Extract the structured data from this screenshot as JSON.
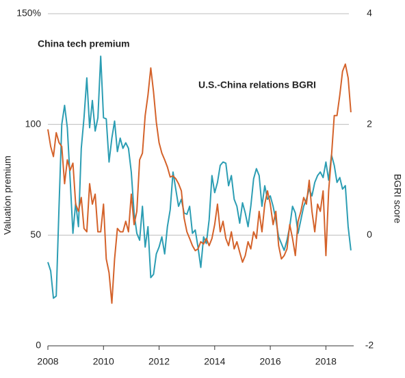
{
  "chart_data": {
    "type": "line",
    "y_label": "Valuation premium",
    "y2_label": "BGRI score",
    "x": [
      2008.0,
      2008.1,
      2008.2,
      2008.3,
      2008.4,
      2008.5,
      2008.6,
      2008.7,
      2008.8,
      2008.9,
      2009.0,
      2009.1,
      2009.2,
      2009.3,
      2009.4,
      2009.5,
      2009.6,
      2009.7,
      2009.8,
      2009.9,
      2010.0,
      2010.1,
      2010.2,
      2010.3,
      2010.4,
      2010.5,
      2010.6,
      2010.7,
      2010.8,
      2010.9,
      2011.0,
      2011.1,
      2011.2,
      2011.3,
      2011.4,
      2011.5,
      2011.6,
      2011.7,
      2011.8,
      2011.9,
      2012.0,
      2012.1,
      2012.2,
      2012.3,
      2012.4,
      2012.5,
      2012.6,
      2012.7,
      2012.8,
      2012.9,
      2013.0,
      2013.1,
      2013.2,
      2013.3,
      2013.4,
      2013.5,
      2013.6,
      2013.7,
      2013.8,
      2013.9,
      2014.0,
      2014.1,
      2014.2,
      2014.3,
      2014.4,
      2014.5,
      2014.6,
      2014.7,
      2014.8,
      2014.9,
      2015.0,
      2015.1,
      2015.2,
      2015.3,
      2015.4,
      2015.5,
      2015.6,
      2015.7,
      2015.8,
      2015.9,
      2016.0,
      2016.1,
      2016.2,
      2016.3,
      2016.4,
      2016.5,
      2016.6,
      2016.7,
      2016.8,
      2016.9,
      2017.0,
      2017.1,
      2017.2,
      2017.3,
      2017.4,
      2017.5,
      2017.6,
      2017.7,
      2017.8,
      2017.9,
      2018.0,
      2018.1,
      2018.2,
      2018.3,
      2018.4,
      2018.5,
      2018.6,
      2018.7,
      2018.8,
      2018.9
    ],
    "series": [
      {
        "name": "China tech premium",
        "color": "#2b9db3",
        "values": [
          37.8,
          33.8,
          21.5,
          22.5,
          63,
          100,
          108.6,
          98.5,
          75.4,
          50.8,
          64.6,
          53.8,
          89.2,
          103,
          121,
          98.5,
          110.8,
          97,
          103,
          130.8,
          103,
          102.5,
          83,
          93.8,
          101.5,
          87.7,
          93.8,
          89.2,
          91.7,
          89.2,
          78.5,
          60,
          50.8,
          47.7,
          63,
          44.6,
          53.8,
          30.8,
          32.3,
          41.5,
          44.6,
          49.2,
          41.5,
          53.8,
          61.5,
          78.5,
          70.8,
          63,
          66.2,
          60,
          59.4,
          63,
          50.8,
          52.3,
          44.6,
          35.4,
          49.2,
          46.2,
          56.9,
          76.9,
          69.2,
          73.8,
          81.5,
          83,
          82.5,
          72.3,
          76.9,
          66.2,
          63,
          55.4,
          64.6,
          60,
          53.8,
          63,
          75.4,
          80,
          76.9,
          63,
          72.3,
          66.2,
          67.7,
          63,
          56.9,
          49.2,
          46.2,
          43.1,
          47.7,
          53.8,
          63,
          60,
          50.8,
          56.9,
          63,
          66.2,
          70.8,
          67.7,
          73.8,
          76.9,
          78.5,
          76,
          83,
          74.8,
          86.2,
          81.5,
          73.8,
          76,
          70.8,
          72.3,
          53.8,
          43.1
        ]
      },
      {
        "name": "U.S.-China relations BGRI",
        "color": "#d4622a",
        "axis": "y2",
        "values": [
          1.91,
          1.6,
          1.42,
          1.85,
          1.67,
          1.6,
          0.93,
          1.36,
          1.17,
          1.3,
          0.56,
          0.43,
          0.68,
          0.12,
          0.06,
          0.93,
          0.56,
          0.74,
          0.06,
          0.06,
          0.56,
          -0.43,
          -0.68,
          -1.23,
          -0.43,
          0.12,
          0.06,
          0.06,
          0.25,
          0.06,
          0.74,
          0.19,
          0.43,
          1.36,
          1.48,
          2.16,
          2.53,
          3.02,
          2.59,
          2.04,
          1.67,
          1.48,
          1.36,
          1.23,
          1.05,
          1.07,
          1.02,
          0.93,
          0.8,
          0.31,
          0.06,
          -0.06,
          -0.19,
          -0.28,
          -0.25,
          -0.12,
          -0.16,
          -0.06,
          -0.19,
          -0.06,
          0.19,
          0.56,
          0.06,
          0.25,
          -0.06,
          -0.19,
          0.06,
          -0.25,
          -0.12,
          -0.31,
          -0.49,
          -0.37,
          -0.12,
          -0.25,
          0.06,
          -0.06,
          0.43,
          0.06,
          0.56,
          0.8,
          0.56,
          0.19,
          0.43,
          -0.19,
          -0.43,
          -0.37,
          -0.25,
          0.19,
          -0.06,
          -0.37,
          0.25,
          0.43,
          0.68,
          0.56,
          0.99,
          0.43,
          0.06,
          0.56,
          0.43,
          0.8,
          -0.37,
          0.8,
          1.42,
          2.16,
          2.16,
          2.53,
          2.96,
          3.09,
          2.84,
          2.22
        ]
      }
    ],
    "xlim": [
      2008,
      2019
    ],
    "xticks": [
      2008,
      2010,
      2012,
      2014,
      2016,
      2018
    ],
    "ylim": [
      0,
      150
    ],
    "yticks": [
      0,
      50,
      100,
      {
        "value": 150,
        "label": "150%"
      }
    ],
    "y2lim": [
      -2,
      4
    ],
    "y2ticks": [
      -2,
      0,
      2,
      4
    ],
    "grid": true
  }
}
